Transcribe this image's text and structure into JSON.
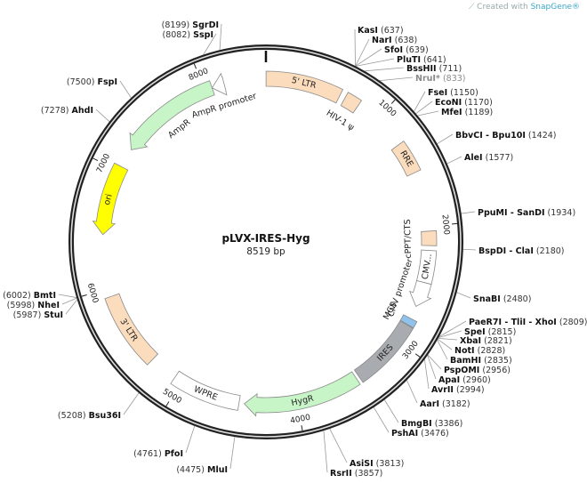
{
  "watermark": {
    "prefix": "Created with ",
    "brand": "SnapGene®",
    "icon": "snapgene-logo-icon"
  },
  "plasmid": {
    "name": "pLVX-IRES-Hyg",
    "size_label": "8519 bp",
    "length": 8519
  },
  "ticks": [
    "1000",
    "2000",
    "3000",
    "4000",
    "5000",
    "6000",
    "7000",
    "8000"
  ],
  "features": [
    {
      "label": "5' LTR",
      "start": 1,
      "end": 634,
      "direction": "none",
      "color": "#fbdcbc",
      "label_pos": "inside"
    },
    {
      "label": "HIV-1 ψ",
      "start": 681,
      "end": 806,
      "direction": "none",
      "color": "#fbdcbc",
      "label_pos": "inner"
    },
    {
      "label": "RRE",
      "start": 1273,
      "end": 1539,
      "direction": "none",
      "color": "#fbdcbc",
      "label_pos": "inside"
    },
    {
      "label": "cPPT/CTS",
      "start": 2040,
      "end": 2160,
      "direction": "none",
      "color": "#fbdcbc",
      "label_pos": "inner"
    },
    {
      "label": "CMV...",
      "start": 2200,
      "end": 2470,
      "direction": "none",
      "color": "#ffffff",
      "label_pos": "inside"
    },
    {
      "label": "CMV promoter",
      "start": 2470,
      "end": 2680,
      "direction": "cw",
      "color": "#ffffff",
      "label_pos": "inner"
    },
    {
      "label": "MCS",
      "start": 2789,
      "end": 2845,
      "direction": "none",
      "color": "#8fc3ee",
      "label_pos": "inner"
    },
    {
      "label": "IRES",
      "start": 2850,
      "end": 3440,
      "direction": "none",
      "color": "#a8acb0",
      "label_pos": "inside"
    },
    {
      "label": "HygR",
      "start": 3466,
      "end": 4440,
      "direction": "cw",
      "color": "#c8f5c8",
      "label_pos": "inside"
    },
    {
      "label": "WPRE",
      "start": 4484,
      "end": 5062,
      "direction": "none",
      "color": "#ffffff",
      "label_pos": "inside"
    },
    {
      "label": "3' LTR",
      "start": 5300,
      "end": 5930,
      "direction": "none",
      "color": "#fbdcbc",
      "label_pos": "inside"
    },
    {
      "label": "ori",
      "start": 6450,
      "end": 7040,
      "direction": "ccw",
      "color": "#ffff00",
      "label_pos": "inside"
    },
    {
      "label": "AmpR",
      "start": 7203,
      "end": 8063,
      "direction": "ccw",
      "color": "#c8f5c8",
      "label_pos": "inner"
    },
    {
      "label": "AmpR promoter",
      "start": 8063,
      "end": 8168,
      "direction": "ccw",
      "color": "#ffffff",
      "label_pos": "inner"
    }
  ],
  "enzymes": [
    {
      "name": "KasI",
      "position": "637"
    },
    {
      "name": "NarI",
      "position": "638"
    },
    {
      "name": "SfoI",
      "position": "639"
    },
    {
      "name": "PluTI",
      "position": "641"
    },
    {
      "name": "BssHII",
      "position": "711"
    },
    {
      "name": "NruI*",
      "position": "833",
      "style": "grey"
    },
    {
      "name": "FseI",
      "position": "1150"
    },
    {
      "name": "EcoNI",
      "position": "1170"
    },
    {
      "name": "MfeI",
      "position": "1189"
    },
    {
      "name": "BbvCI - Bpu10I",
      "position": "1424"
    },
    {
      "name": "AleI",
      "position": "1577"
    },
    {
      "name": "PpuMI - SanDI",
      "position": "1934"
    },
    {
      "name": "BspDI - ClaI",
      "position": "2180"
    },
    {
      "name": "SnaBI",
      "position": "2480"
    },
    {
      "name": "PaeR7I - TliI - XhoI",
      "position": "2809"
    },
    {
      "name": "SpeI",
      "position": "2815"
    },
    {
      "name": "XbaI",
      "position": "2821"
    },
    {
      "name": "NotI",
      "position": "2828"
    },
    {
      "name": "BamHI",
      "position": "2835"
    },
    {
      "name": "PspOMI",
      "position": "2956"
    },
    {
      "name": "ApaI",
      "position": "2960"
    },
    {
      "name": "AvrII",
      "position": "2994"
    },
    {
      "name": "AarI",
      "position": "3182"
    },
    {
      "name": "BmgBI",
      "position": "3386"
    },
    {
      "name": "PshAI",
      "position": "3476"
    },
    {
      "name": "AsiSI",
      "position": "3813"
    },
    {
      "name": "RsrII",
      "position": "3857"
    },
    {
      "name": "MluI",
      "position": "4475"
    },
    {
      "name": "PfoI",
      "position": "4761"
    },
    {
      "name": "Bsu36I",
      "position": "5208"
    },
    {
      "name": "StuI",
      "position": "5987"
    },
    {
      "name": "NheI",
      "position": "5998"
    },
    {
      "name": "BmtI",
      "position": "6002"
    },
    {
      "name": "AhdI",
      "position": "7278"
    },
    {
      "name": "FspI",
      "position": "7500"
    },
    {
      "name": "SspI",
      "position": "8082"
    },
    {
      "name": "SgrDI",
      "position": "8199"
    }
  ]
}
